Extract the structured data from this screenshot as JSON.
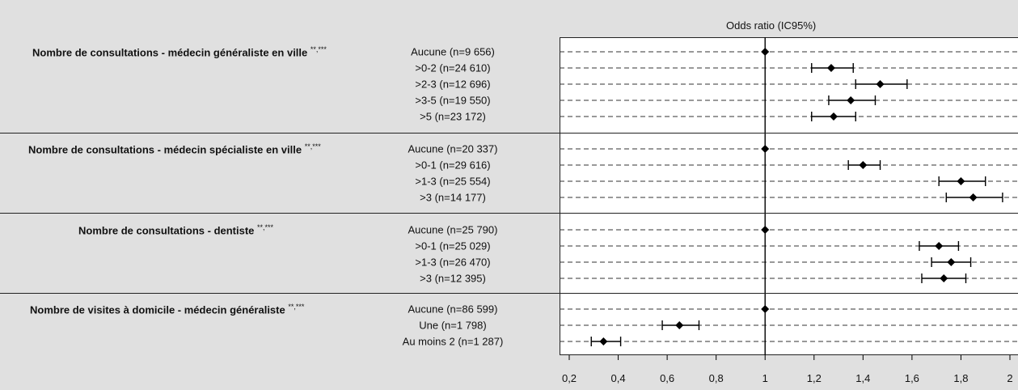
{
  "chart_data": {
    "type": "scatter",
    "subtype": "forest-plot",
    "axis_title": "Odds ratio (IC95%)",
    "reference_line": 1,
    "xlim": [
      0.2,
      2.0
    ],
    "ticks": [
      "0,2",
      "0,4",
      "0,6",
      "0,8",
      "1",
      "1,2",
      "1,4",
      "1,6",
      "1,8",
      "2"
    ],
    "tick_values": [
      0.2,
      0.4,
      0.6,
      0.8,
      1.0,
      1.2,
      1.4,
      1.6,
      1.8,
      2.0
    ],
    "grid": "dashed horizontal per row",
    "groups": [
      {
        "label": "Nombre de consultations - médecin généraliste en ville",
        "sig": "**,***",
        "rows": [
          {
            "label": "Aucune (n=9 656)",
            "or": 1.0,
            "lo": 1.0,
            "hi": 1.0
          },
          {
            "label": ">0-2 (n=24 610)",
            "or": 1.27,
            "lo": 1.19,
            "hi": 1.36
          },
          {
            "label": ">2-3 (n=12 696)",
            "or": 1.47,
            "lo": 1.37,
            "hi": 1.58
          },
          {
            "label": ">3-5 (n=19 550)",
            "or": 1.35,
            "lo": 1.26,
            "hi": 1.45
          },
          {
            "label": ">5 (n=23 172)",
            "or": 1.28,
            "lo": 1.19,
            "hi": 1.37
          }
        ]
      },
      {
        "label": "Nombre de consultations - médecin spécialiste en ville",
        "sig": "**,***",
        "rows": [
          {
            "label": "Aucune (n=20 337)",
            "or": 1.0,
            "lo": 1.0,
            "hi": 1.0
          },
          {
            "label": ">0-1 (n=29 616)",
            "or": 1.4,
            "lo": 1.34,
            "hi": 1.47
          },
          {
            "label": ">1-3 (n=25 554)",
            "or": 1.8,
            "lo": 1.71,
            "hi": 1.9
          },
          {
            "label": ">3 (n=14 177)",
            "or": 1.85,
            "lo": 1.74,
            "hi": 1.97
          }
        ]
      },
      {
        "label": "Nombre de consultations - dentiste",
        "sig": "**,***",
        "rows": [
          {
            "label": "Aucune (n=25 790)",
            "or": 1.0,
            "lo": 1.0,
            "hi": 1.0
          },
          {
            "label": ">0-1 (n=25 029)",
            "or": 1.71,
            "lo": 1.63,
            "hi": 1.79
          },
          {
            "label": ">1-3 (n=26 470)",
            "or": 1.76,
            "lo": 1.68,
            "hi": 1.84
          },
          {
            "label": ">3 (n=12 395)",
            "or": 1.73,
            "lo": 1.64,
            "hi": 1.82
          }
        ]
      },
      {
        "label": "Nombre de visites à domicile - médecin généraliste",
        "sig": "**,***",
        "rows": [
          {
            "label": "Aucune (n=86 599)",
            "or": 1.0,
            "lo": 1.0,
            "hi": 1.0
          },
          {
            "label": "Une (n=1 798)",
            "or": 0.65,
            "lo": 0.58,
            "hi": 0.73
          },
          {
            "label": "Au moins 2 (n=1 287)",
            "or": 0.34,
            "lo": 0.29,
            "hi": 0.41
          }
        ]
      }
    ]
  }
}
